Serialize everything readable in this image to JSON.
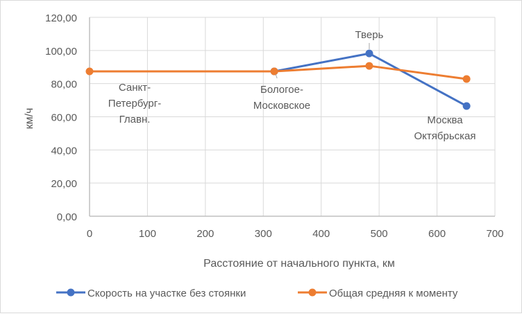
{
  "chart_data": {
    "type": "line",
    "title": "",
    "xlabel": "Расстояние от начального пункта, км",
    "ylabel": "км/ч",
    "xlim": [
      0,
      700
    ],
    "ylim": [
      0,
      120
    ],
    "x_ticks": [
      "0",
      "100",
      "200",
      "300",
      "400",
      "500",
      "600",
      "700"
    ],
    "y_ticks": [
      "0,00",
      "20,00",
      "40,00",
      "60,00",
      "80,00",
      "100,00",
      "120,00"
    ],
    "grid": true,
    "legend_position": "bottom",
    "series": [
      {
        "name": "Скорость на участке без стоянки",
        "color": "#4472c4",
        "x": [
          319,
          483,
          651
        ],
        "values": [
          87.4,
          98.2,
          66.5
        ]
      },
      {
        "name": "Общая средняя к моменту",
        "color": "#ed7d31",
        "x": [
          0,
          319,
          483,
          651
        ],
        "values": [
          87.4,
          87.4,
          90.7,
          82.8
        ]
      }
    ],
    "annotations": [
      {
        "text": "Санкт-Петербург-Главн.",
        "x": 0
      },
      {
        "text": "Бологое-Московское",
        "x": 319
      },
      {
        "text": "Тверь",
        "x": 483
      },
      {
        "text": "Москва Октябрьская",
        "x": 651
      }
    ]
  },
  "labels": {
    "spb": [
      "Санкт-",
      "Петербург-",
      "Главн."
    ],
    "bologoe": [
      "Бологое-",
      "Московское"
    ],
    "tver": "Тверь",
    "moscow": [
      "Москва",
      "Октябрьская"
    ]
  }
}
